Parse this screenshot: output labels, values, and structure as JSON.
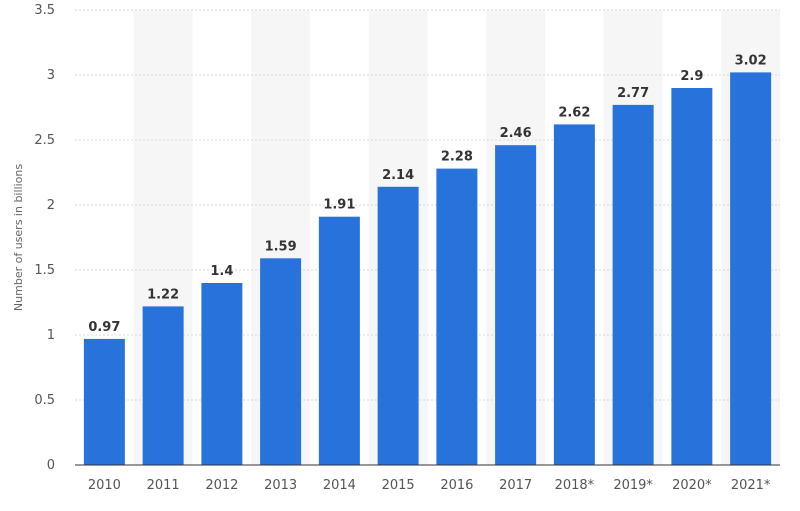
{
  "chart_data": {
    "type": "bar",
    "categories": [
      "2010",
      "2011",
      "2012",
      "2013",
      "2014",
      "2015",
      "2016",
      "2017",
      "2018*",
      "2019*",
      "2020*",
      "2021*"
    ],
    "values": [
      0.97,
      1.22,
      1.4,
      1.59,
      1.91,
      2.14,
      2.28,
      2.46,
      2.62,
      2.77,
      2.9,
      3.02
    ],
    "value_labels": [
      "0.97",
      "1.22",
      "1.4",
      "1.59",
      "1.91",
      "2.14",
      "2.28",
      "2.46",
      "2.62",
      "2.77",
      "2.9",
      "3.02"
    ],
    "ylabel": "Number of users in billions",
    "xlabel": "",
    "ylim": [
      0,
      3.5
    ],
    "yticks": [
      0,
      0.5,
      1,
      1.5,
      2,
      2.5,
      3,
      3.5
    ],
    "ytick_labels": [
      "0",
      "0.5",
      "1",
      "1.5",
      "2",
      "2.5",
      "3",
      "3.5"
    ],
    "grid": true,
    "legend": "none",
    "colors": {
      "bar": "#2773db",
      "band": "#f6f6f6",
      "grid": "#d8d8d8",
      "axis": "#333333"
    }
  }
}
